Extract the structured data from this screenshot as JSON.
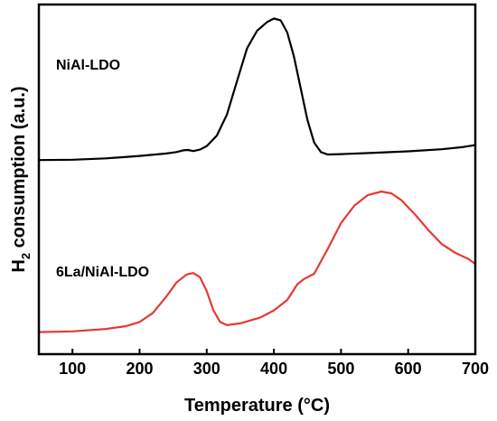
{
  "chart_data": {
    "type": "line",
    "title": "",
    "xlabel": "Temperature (°C)",
    "ylabel_main": "H",
    "ylabel_sub": "2",
    "ylabel_rest": " consumption (a.u.)",
    "xlim": [
      50,
      700
    ],
    "ylim": [
      0,
      1
    ],
    "xticks": [
      100,
      200,
      300,
      400,
      500,
      600,
      700
    ],
    "yticks_shown": false,
    "grid": false,
    "legend": "none",
    "series": [
      {
        "name": "NiAl-LDO",
        "color": "#000000",
        "points": [
          [
            50,
            0.555
          ],
          [
            100,
            0.556
          ],
          [
            150,
            0.56
          ],
          [
            200,
            0.567
          ],
          [
            240,
            0.574
          ],
          [
            255,
            0.578
          ],
          [
            265,
            0.583
          ],
          [
            272,
            0.584
          ],
          [
            280,
            0.581
          ],
          [
            290,
            0.585
          ],
          [
            300,
            0.595
          ],
          [
            315,
            0.625
          ],
          [
            330,
            0.685
          ],
          [
            345,
            0.78
          ],
          [
            360,
            0.875
          ],
          [
            375,
            0.925
          ],
          [
            390,
            0.95
          ],
          [
            400,
            0.96
          ],
          [
            410,
            0.955
          ],
          [
            420,
            0.92
          ],
          [
            430,
            0.85
          ],
          [
            440,
            0.76
          ],
          [
            450,
            0.67
          ],
          [
            460,
            0.605
          ],
          [
            470,
            0.578
          ],
          [
            480,
            0.571
          ],
          [
            500,
            0.572
          ],
          [
            550,
            0.576
          ],
          [
            600,
            0.58
          ],
          [
            650,
            0.586
          ],
          [
            680,
            0.592
          ],
          [
            700,
            0.598
          ]
        ]
      },
      {
        "name": "6La/NiAl-LDO",
        "color": "#e53935",
        "points": [
          [
            50,
            0.063
          ],
          [
            100,
            0.065
          ],
          [
            150,
            0.072
          ],
          [
            180,
            0.08
          ],
          [
            200,
            0.092
          ],
          [
            220,
            0.118
          ],
          [
            240,
            0.165
          ],
          [
            255,
            0.205
          ],
          [
            270,
            0.228
          ],
          [
            280,
            0.232
          ],
          [
            290,
            0.22
          ],
          [
            300,
            0.18
          ],
          [
            310,
            0.125
          ],
          [
            320,
            0.092
          ],
          [
            330,
            0.083
          ],
          [
            350,
            0.088
          ],
          [
            380,
            0.105
          ],
          [
            400,
            0.125
          ],
          [
            420,
            0.155
          ],
          [
            435,
            0.2
          ],
          [
            445,
            0.215
          ],
          [
            460,
            0.23
          ],
          [
            480,
            0.3
          ],
          [
            500,
            0.375
          ],
          [
            520,
            0.425
          ],
          [
            540,
            0.455
          ],
          [
            560,
            0.465
          ],
          [
            575,
            0.46
          ],
          [
            590,
            0.44
          ],
          [
            610,
            0.4
          ],
          [
            630,
            0.355
          ],
          [
            650,
            0.315
          ],
          [
            670,
            0.29
          ],
          [
            690,
            0.272
          ],
          [
            700,
            0.258
          ]
        ]
      }
    ]
  }
}
